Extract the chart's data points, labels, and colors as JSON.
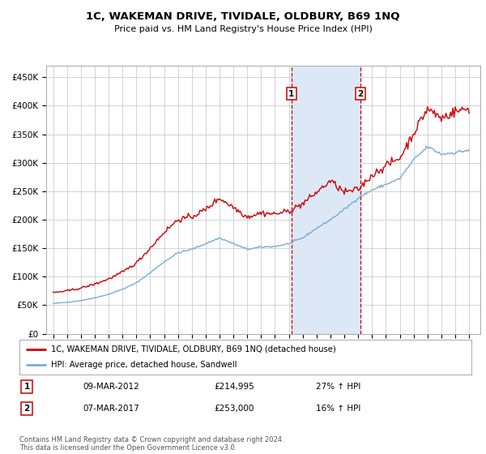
{
  "title": "1C, WAKEMAN DRIVE, TIVIDALE, OLDBURY, B69 1NQ",
  "subtitle": "Price paid vs. HM Land Registry's House Price Index (HPI)",
  "ylim": [
    0,
    470000
  ],
  "yticks": [
    0,
    50000,
    100000,
    150000,
    200000,
    250000,
    300000,
    350000,
    400000,
    450000
  ],
  "ytick_labels": [
    "£0",
    "£50K",
    "£100K",
    "£150K",
    "£200K",
    "£250K",
    "£300K",
    "£350K",
    "£400K",
    "£450K"
  ],
  "background_color": "#ffffff",
  "grid_color": "#cccccc",
  "sale1_date_x": 2012.19,
  "sale1_price": 214995,
  "sale2_date_x": 2017.18,
  "sale2_price": 253000,
  "shade_color": "#dce8f5",
  "vline_color": "#cc0000",
  "legend_line1": "1C, WAKEMAN DRIVE, TIVIDALE, OLDBURY, B69 1NQ (detached house)",
  "legend_line2": "HPI: Average price, detached house, Sandwell",
  "note1_label": "1",
  "note1_date": "09-MAR-2012",
  "note1_price": "£214,995",
  "note1_hpi": "27% ↑ HPI",
  "note2_label": "2",
  "note2_date": "07-MAR-2017",
  "note2_price": "£253,000",
  "note2_hpi": "16% ↑ HPI",
  "footer": "Contains HM Land Registry data © Crown copyright and database right 2024.\nThis data is licensed under the Open Government Licence v3.0.",
  "red_line_color": "#cc0000",
  "blue_line_color": "#7aadd4",
  "hpi_key_years": [
    1995,
    1996,
    1997,
    1998,
    1999,
    2000,
    2001,
    2002,
    2003,
    2004,
    2005,
    2006,
    2007,
    2008,
    2009,
    2010,
    2011,
    2012,
    2013,
    2014,
    2015,
    2016,
    2017,
    2018,
    2019,
    2020,
    2021,
    2022,
    2023,
    2024,
    2025
  ],
  "hpi_key_values": [
    53000,
    55000,
    58000,
    63000,
    69000,
    78000,
    89000,
    107000,
    126000,
    142000,
    148000,
    158000,
    168000,
    158000,
    148000,
    152000,
    153000,
    158000,
    168000,
    185000,
    200000,
    218000,
    238000,
    252000,
    262000,
    272000,
    305000,
    328000,
    315000,
    318000,
    322000
  ],
  "price_key_years": [
    1995,
    1996,
    1997,
    1998,
    1999,
    2000,
    2001,
    2002,
    2003,
    2004,
    2005,
    2006,
    2007,
    2008,
    2009,
    2010,
    2011,
    2012,
    2013,
    2014,
    2015,
    2016,
    2017,
    2018,
    2019,
    2020,
    2021,
    2022,
    2023,
    2024,
    2025
  ],
  "price_key_values": [
    72000,
    75000,
    80000,
    87000,
    96000,
    108000,
    124000,
    150000,
    178000,
    200000,
    205000,
    218000,
    238000,
    222000,
    205000,
    212000,
    210000,
    214995,
    228000,
    248000,
    268000,
    248000,
    253000,
    278000,
    295000,
    308000,
    352000,
    395000,
    378000,
    390000,
    395000
  ],
  "xlim_left": 1994.5,
  "xlim_right": 2025.8,
  "noise_scale_hpi": 0.005,
  "noise_scale_price": 0.012
}
